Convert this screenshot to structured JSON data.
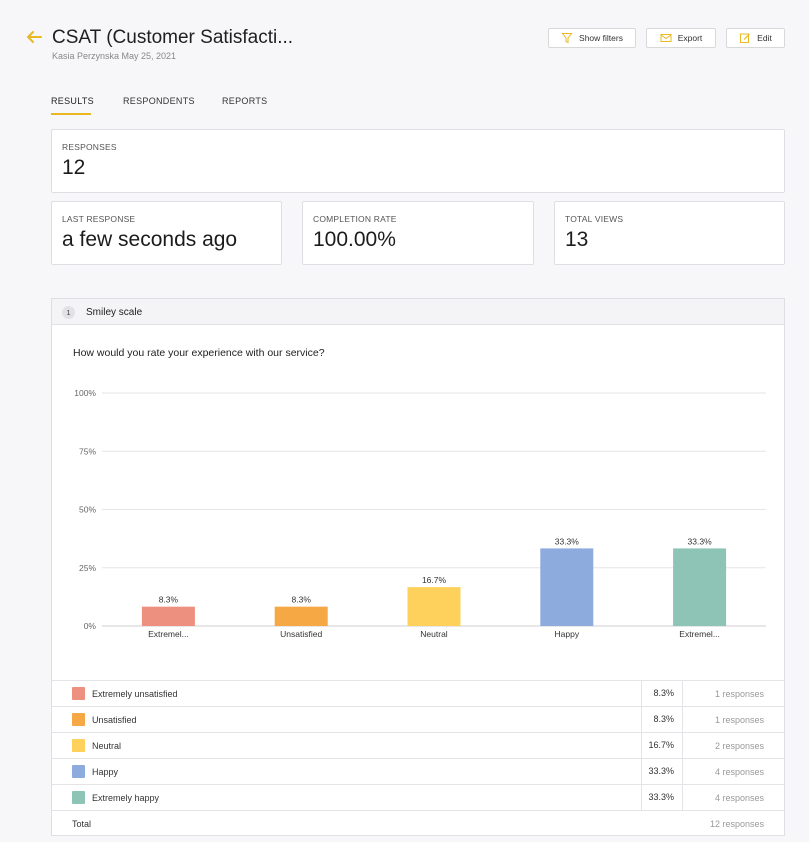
{
  "header": {
    "title": "CSAT (Customer Satisfacti...",
    "subtitle": "Kasia Perzynska May 25, 2021",
    "buttons": {
      "filters": "Show filters",
      "export": "Export",
      "edit": "Edit"
    }
  },
  "tabs": [
    "RESULTS",
    "RESPONDENTS",
    "REPORTS"
  ],
  "stats": {
    "responses": {
      "label": "RESPONSES",
      "value": "12"
    },
    "last_response": {
      "label": "LAST RESPONSE",
      "value": "a few seconds ago"
    },
    "completion_rate": {
      "label": "COMPLETION RATE",
      "value": "100.00%"
    },
    "total_views": {
      "label": "TOTAL VIEWS",
      "value": "13"
    }
  },
  "question": {
    "number": "1",
    "type": "Smiley scale",
    "text": "How would you rate your experience with our service?"
  },
  "chart_data": {
    "type": "bar",
    "categories": [
      "Extremel...",
      "Unsatisfied",
      "Neutral",
      "Happy",
      "Extremel..."
    ],
    "values": [
      8.3,
      8.3,
      16.7,
      33.3,
      33.3
    ],
    "value_labels": [
      "8.3%",
      "8.3%",
      "16.7%",
      "33.3%",
      "33.3%"
    ],
    "colors": [
      "#ee9080",
      "#f6a844",
      "#fed05c",
      "#8eabde",
      "#8ec4b5"
    ],
    "yticks": [
      "0%",
      "25%",
      "50%",
      "75%",
      "100%"
    ],
    "ylim": [
      0,
      100
    ],
    "grid": true
  },
  "legend": [
    {
      "label": "Extremely unsatisfied",
      "pct": "8.3%",
      "responses": "1 responses",
      "color": "#ee9080"
    },
    {
      "label": "Unsatisfied",
      "pct": "8.3%",
      "responses": "1 responses",
      "color": "#f6a844"
    },
    {
      "label": "Neutral",
      "pct": "16.7%",
      "responses": "2 responses",
      "color": "#fed05c"
    },
    {
      "label": "Happy",
      "pct": "33.3%",
      "responses": "4 responses",
      "color": "#8eabde"
    },
    {
      "label": "Extremely happy",
      "pct": "33.3%",
      "responses": "4 responses",
      "color": "#8ec4b5"
    }
  ],
  "total": {
    "label": "Total",
    "responses": "12 responses"
  }
}
